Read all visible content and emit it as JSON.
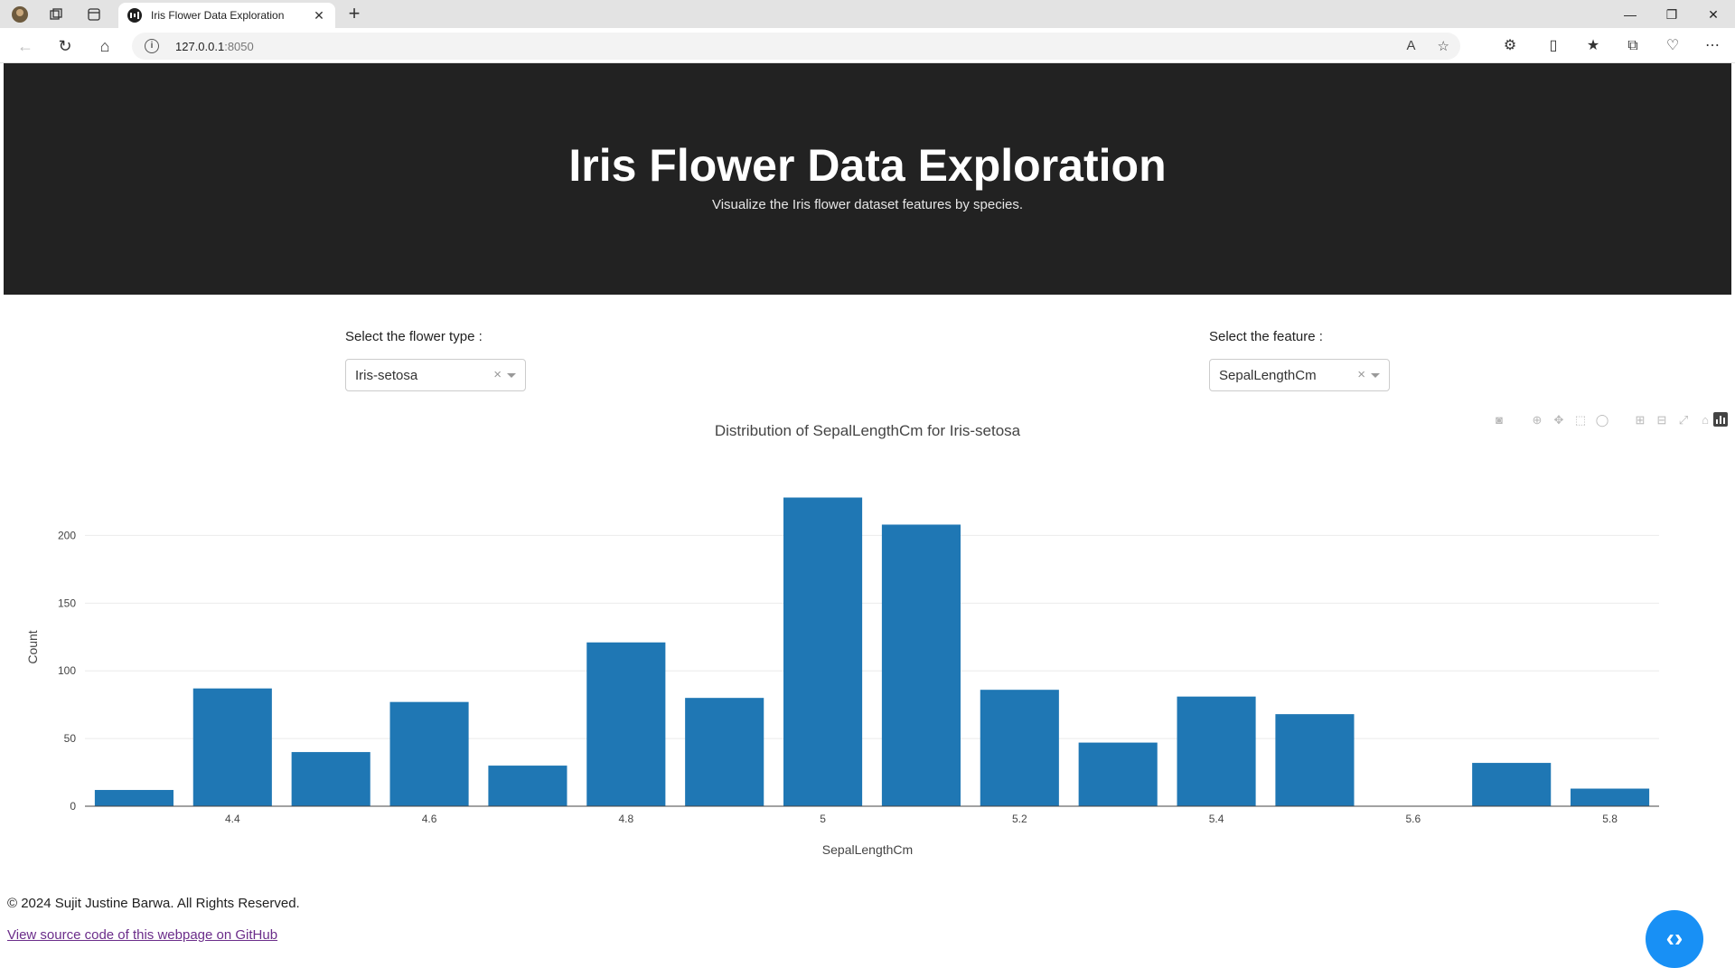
{
  "browser": {
    "tab_title": "Iris Flower Data Exploration",
    "url_host": "127.0.0.1",
    "url_port": ":8050"
  },
  "header": {
    "title": "Iris Flower Data Exploration",
    "subtitle": "Visualize the Iris flower dataset features by species."
  },
  "controls": {
    "flower_label": "Select the flower type :",
    "flower_value": "Iris-setosa",
    "feature_label": "Select the feature :",
    "feature_value": "SepalLengthCm"
  },
  "chart_data": {
    "type": "bar",
    "title": "Distribution of SepalLengthCm for Iris-setosa",
    "xlabel": "SepalLengthCm",
    "ylabel": "Count",
    "x": [
      4.3,
      4.4,
      4.5,
      4.6,
      4.7,
      4.8,
      4.9,
      5.0,
      5.1,
      5.2,
      5.3,
      5.4,
      5.5,
      5.6,
      5.7,
      5.8
    ],
    "values": [
      12,
      87,
      40,
      77,
      30,
      121,
      80,
      228,
      208,
      86,
      47,
      81,
      68,
      0,
      32,
      13
    ],
    "xticks": [
      "4.4",
      "4.6",
      "4.8",
      "5",
      "5.2",
      "5.4",
      "5.6",
      "5.8"
    ],
    "xtick_values": [
      4.4,
      4.6,
      4.8,
      5.0,
      5.2,
      5.4,
      5.6,
      5.8
    ],
    "yticks": [
      "0",
      "50",
      "100",
      "150",
      "200"
    ],
    "ytick_values": [
      0,
      50,
      100,
      150,
      200
    ],
    "xlim": [
      4.25,
      5.85
    ],
    "ylim": [
      0,
      235
    ],
    "grid": true,
    "bar_color": "#1f77b4"
  },
  "footer": {
    "copyright": "© 2024 Sujit Justine Barwa. All Rights Reserved.",
    "github_link": "View source code of this webpage on GitHub"
  },
  "icons": {
    "fab": "code-icon"
  }
}
